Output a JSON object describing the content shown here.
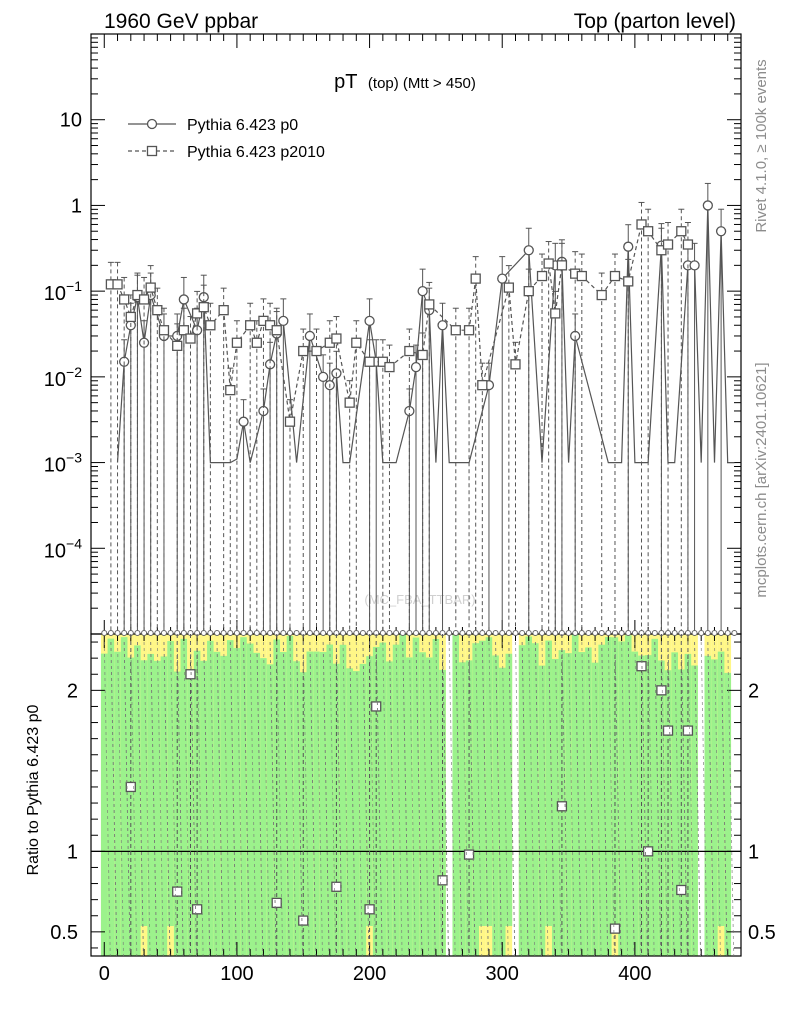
{
  "header": {
    "left_title": "1960 GeV ppbar",
    "right_title": "Top (parton level)"
  },
  "side_labels": {
    "rivet": "Rivet 4.1.0, ≥ 100k events",
    "mcplots": "mcplots.cern.ch [arXiv:2401.10621]"
  },
  "watermark": "(MC_FBA_TTBAR)",
  "chart_data": {
    "type": "line",
    "title_main": "pT",
    "title_sub": "(top) (Mtt > 450)",
    "xlim": [
      -10,
      480
    ],
    "main_panel": {
      "yscale": "log",
      "ylim": [
        1e-05,
        100
      ],
      "y_ticks": [
        {
          "value": 10,
          "label": "10"
        },
        {
          "value": 1,
          "label": "1"
        },
        {
          "value": 0.1,
          "base": "10",
          "exp": "−1"
        },
        {
          "value": 0.01,
          "base": "10",
          "exp": "−2"
        },
        {
          "value": 0.001,
          "base": "10",
          "exp": "−3"
        },
        {
          "value": 0.0001,
          "base": "10",
          "exp": "−4"
        }
      ]
    },
    "ratio_panel": {
      "ylabel": "Ratio to Pythia 6.423 p0",
      "ylim": [
        0.35,
        2.35
      ],
      "y_ticks": [
        {
          "value": 0.5,
          "label": "0.5"
        },
        {
          "value": 1,
          "label": "1"
        },
        {
          "value": 2,
          "label": "2"
        }
      ],
      "reference_line": 1
    },
    "x_ticks": [
      {
        "value": 0,
        "label": "0"
      },
      {
        "value": 100,
        "label": "100"
      },
      {
        "value": 200,
        "label": "200"
      },
      {
        "value": 300,
        "label": "300"
      },
      {
        "value": 400,
        "label": "400"
      }
    ],
    "series": [
      {
        "name": "Pythia 6.423 p0",
        "marker": "circle",
        "line_style": "solid",
        "x": [
          10,
          15,
          20,
          25,
          30,
          35,
          45,
          55,
          60,
          70,
          75,
          80,
          95,
          100,
          105,
          110,
          120,
          125,
          130,
          135,
          145,
          155,
          165,
          170,
          175,
          180,
          185,
          200,
          205,
          210,
          220,
          230,
          235,
          240,
          245,
          250,
          255,
          260,
          275,
          290,
          300,
          320,
          330,
          340,
          345,
          350,
          355,
          380,
          390,
          395,
          400,
          410,
          420,
          425,
          430,
          440,
          445,
          450,
          455,
          460,
          465,
          470,
          475
        ],
        "y": [
          0.001,
          0.015,
          0.04,
          0.085,
          0.025,
          0.09,
          0.03,
          0.03,
          0.08,
          0.035,
          0.085,
          0.001,
          0.001,
          0.0011,
          0.003,
          0.001,
          0.004,
          0.014,
          0.032,
          0.045,
          0.001,
          0.03,
          0.01,
          0.008,
          0.011,
          0.001,
          0.001,
          0.045,
          0.015,
          0.001,
          0.001,
          0.004,
          0.013,
          0.1,
          0.06,
          0.001,
          0.04,
          0.001,
          0.001,
          0.008,
          0.14,
          0.3,
          0.001,
          0.2,
          0.22,
          0.001,
          0.03,
          0.001,
          0.001,
          0.33,
          0.001,
          0.001,
          0.34,
          0.001,
          0.001,
          0.2,
          0.2,
          0.001,
          1.0,
          0.001,
          0.5,
          0.001,
          0.001
        ]
      },
      {
        "name": "Pythia 6.423 p2010",
        "marker": "square",
        "line_style": "dashed",
        "x": [
          5,
          10,
          15,
          20,
          25,
          30,
          35,
          40,
          45,
          55,
          60,
          65,
          70,
          75,
          80,
          90,
          95,
          100,
          110,
          115,
          120,
          125,
          130,
          140,
          150,
          160,
          170,
          175,
          185,
          190,
          200,
          210,
          215,
          230,
          240,
          245,
          265,
          275,
          280,
          285,
          305,
          310,
          320,
          330,
          335,
          340,
          345,
          355,
          360,
          375,
          385,
          395,
          405,
          410,
          420,
          425,
          435,
          440
        ],
        "y": [
          0.12,
          0.12,
          0.08,
          0.05,
          0.09,
          0.08,
          0.11,
          0.06,
          0.035,
          0.023,
          0.035,
          0.028,
          0.055,
          0.065,
          0.04,
          0.06,
          0.007,
          0.025,
          0.04,
          0.025,
          0.045,
          0.04,
          0.035,
          0.003,
          0.02,
          0.02,
          0.025,
          0.028,
          0.005,
          0.025,
          0.015,
          0.015,
          0.013,
          0.02,
          0.018,
          0.07,
          0.035,
          0.035,
          0.14,
          0.008,
          0.11,
          0.014,
          0.1,
          0.15,
          0.21,
          0.055,
          0.2,
          0.16,
          0.15,
          0.09,
          0.15,
          0.13,
          0.6,
          0.5,
          0.3,
          0.35,
          0.5,
          0.35
        ]
      },
      {
        "name": "Pythia 6.423 p2010 / Pythia 6.423 p0",
        "marker": "square",
        "line_style": "dashed",
        "x": [
          20,
          55,
          65,
          70,
          130,
          150,
          175,
          200,
          205,
          255,
          275,
          345,
          385,
          405,
          410,
          420,
          425,
          435,
          440
        ],
        "y": [
          1.4,
          0.75,
          2.1,
          0.64,
          0.68,
          0.57,
          0.78,
          0.64,
          1.9,
          0.82,
          0.98,
          1.28,
          0.52,
          2.15,
          1.0,
          2.0,
          1.75,
          0.76,
          1.75
        ]
      }
    ]
  }
}
